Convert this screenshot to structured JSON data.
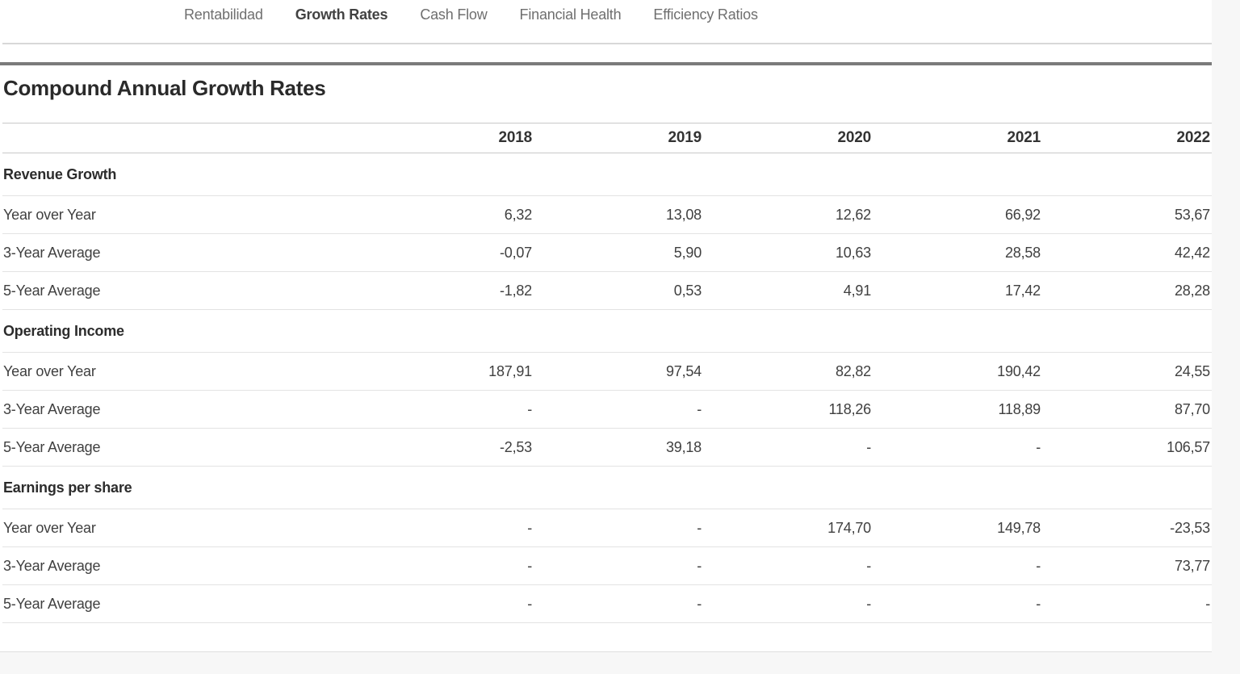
{
  "tabs": [
    {
      "label": "Rentabilidad",
      "active": false
    },
    {
      "label": "Growth Rates",
      "active": true
    },
    {
      "label": "Cash Flow",
      "active": false
    },
    {
      "label": "Financial Health",
      "active": false
    },
    {
      "label": "Efficiency Ratios",
      "active": false
    }
  ],
  "title": "Compound Annual Growth Rates",
  "table": {
    "years": [
      "2018",
      "2019",
      "2020",
      "2021",
      "2022"
    ],
    "sections": [
      {
        "name": "Revenue Growth",
        "rows": [
          {
            "label": "Year over Year",
            "values": [
              "6,32",
              "13,08",
              "12,62",
              "66,92",
              "53,67"
            ]
          },
          {
            "label": "3-Year Average",
            "values": [
              "-0,07",
              "5,90",
              "10,63",
              "28,58",
              "42,42"
            ]
          },
          {
            "label": "5-Year Average",
            "values": [
              "-1,82",
              "0,53",
              "4,91",
              "17,42",
              "28,28"
            ]
          }
        ]
      },
      {
        "name": "Operating Income",
        "rows": [
          {
            "label": "Year over Year",
            "values": [
              "187,91",
              "97,54",
              "82,82",
              "190,42",
              "24,55"
            ]
          },
          {
            "label": "3-Year Average",
            "values": [
              "-",
              "-",
              "118,26",
              "118,89",
              "87,70"
            ]
          },
          {
            "label": "5-Year Average",
            "values": [
              "-2,53",
              "39,18",
              "-",
              "-",
              "106,57"
            ]
          }
        ]
      },
      {
        "name": "Earnings per share",
        "rows": [
          {
            "label": "Year over Year",
            "values": [
              "-",
              "-",
              "174,70",
              "149,78",
              "-23,53"
            ]
          },
          {
            "label": "3-Year Average",
            "values": [
              "-",
              "-",
              "-",
              "-",
              "73,77"
            ]
          },
          {
            "label": "5-Year Average",
            "values": [
              "-",
              "-",
              "-",
              "-",
              "-"
            ]
          }
        ]
      }
    ]
  }
}
